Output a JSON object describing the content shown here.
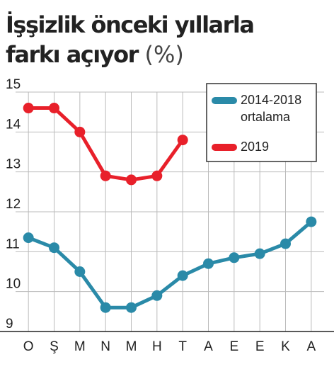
{
  "chart_data": {
    "type": "line",
    "title": "İşşizlik önceki yıllarla farkı açıyor",
    "ylabel": "(%)",
    "categories": [
      "O",
      "Ş",
      "M",
      "N",
      "M",
      "H",
      "T",
      "A",
      "E",
      "E",
      "K",
      "A"
    ],
    "series": [
      {
        "name": "2014-2018 ortalama",
        "color": "#2a8aa8",
        "values": [
          11.35,
          11.1,
          10.5,
          9.6,
          9.6,
          9.9,
          10.4,
          10.7,
          10.85,
          10.95,
          11.2,
          11.75
        ]
      },
      {
        "name": "2019",
        "color": "#e8202a",
        "values": [
          14.6,
          14.6,
          14.0,
          12.9,
          12.8,
          12.9,
          13.8,
          null,
          null,
          null,
          null,
          null
        ]
      }
    ],
    "ylim": [
      9,
      15
    ],
    "yticks": [
      9,
      10,
      11,
      12,
      13,
      14,
      15
    ],
    "grid": true,
    "legend": "upper right"
  }
}
